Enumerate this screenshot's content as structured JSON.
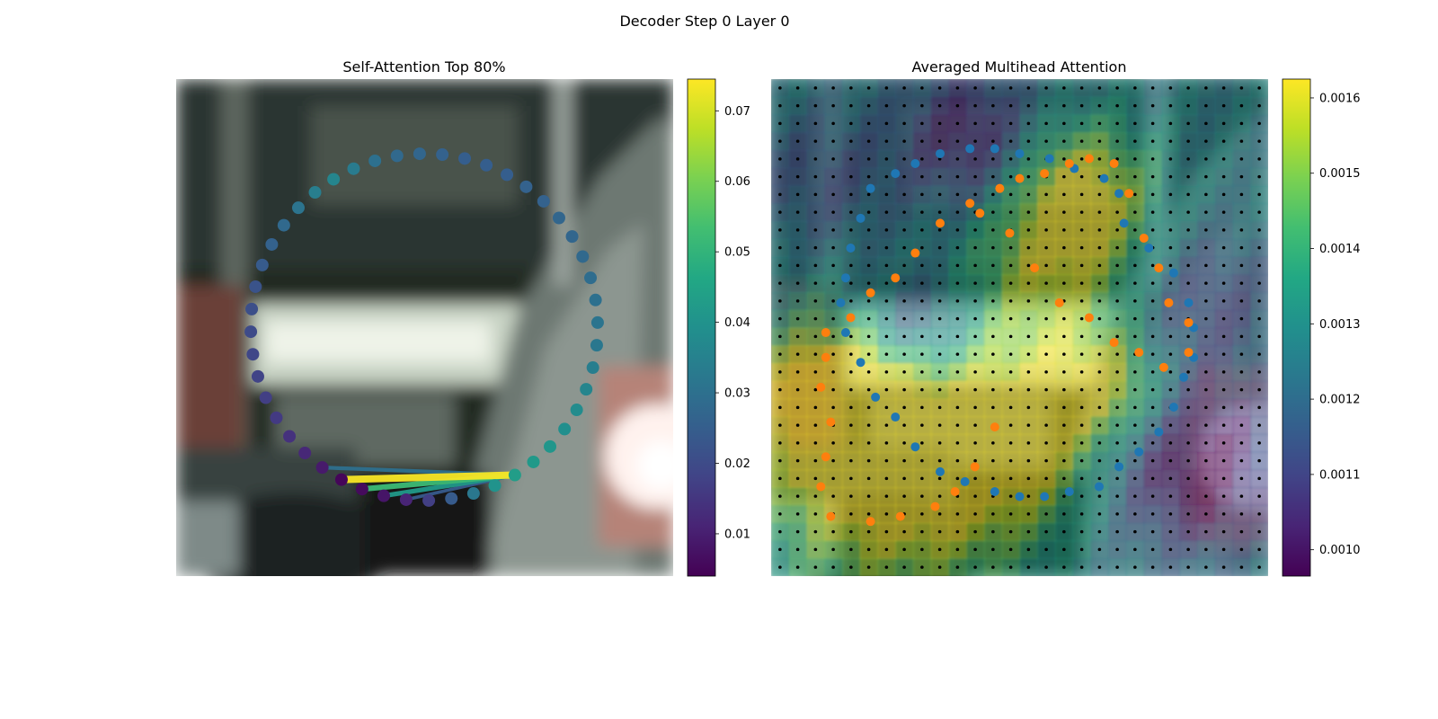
{
  "figure": {
    "suptitle": "Decoder Step 0 Layer 0"
  },
  "chart_data": [
    {
      "type": "scatter",
      "title": "Self-Attention Top 80%",
      "background": "blurred camera crop of a vehicle interior (dark cabin, bright window, bright lamp at right)",
      "colormap": "viridis",
      "colorbar": {
        "range": [
          0.004,
          0.0745
        ],
        "ticks": [
          0.01,
          0.02,
          0.03,
          0.04,
          0.05,
          0.06,
          0.07
        ],
        "tick_labels": [
          "0.01",
          "0.02",
          "0.03",
          "0.04",
          "0.05",
          "0.06",
          "0.07"
        ]
      },
      "points": {
        "description": "48 contour control points placed on a closed ring, colored by attention weight",
        "count": 48,
        "query_index": 0,
        "values": [
          0.043,
          0.042,
          0.041,
          0.039,
          0.038,
          0.036,
          0.034,
          0.032,
          0.031,
          0.03,
          0.029,
          0.028,
          0.027,
          0.027,
          0.026,
          0.026,
          0.025,
          0.025,
          0.025,
          0.026,
          0.027,
          0.028,
          0.03,
          0.033,
          0.036,
          0.034,
          0.031,
          0.028,
          0.026,
          0.024,
          0.022,
          0.021,
          0.02,
          0.019,
          0.018,
          0.017,
          0.016,
          0.014,
          0.012,
          0.009,
          0.005,
          0.006,
          0.008,
          0.011,
          0.017,
          0.024,
          0.032,
          0.04
        ]
      },
      "attention_lines": [
        {
          "target_index": 40,
          "weight": 0.074
        },
        {
          "target_index": 41,
          "weight": 0.052
        },
        {
          "target_index": 42,
          "weight": 0.042
        },
        {
          "target_index": 39,
          "weight": 0.03
        },
        {
          "target_index": 43,
          "weight": 0.024
        }
      ]
    },
    {
      "type": "heatmap",
      "title": "Averaged Multihead Attention",
      "background": "same camera crop overlaid with 28x28 attention grid",
      "colormap": "viridis",
      "colorbar": {
        "range": [
          0.000965,
          0.001625
        ],
        "ticks": [
          0.001,
          0.0011,
          0.0012,
          0.0013,
          0.0014,
          0.0015,
          0.0016
        ],
        "tick_labels": [
          "0.0010",
          "0.0011",
          "0.0012",
          "0.0013",
          "0.0014",
          "0.0015",
          "0.0016"
        ]
      },
      "grid": {
        "rows": 28,
        "cols": 28,
        "markers": "black dots at cell centers"
      },
      "series": [
        {
          "color": "#1f77b4",
          "kind": "reference contour points",
          "x": [
            0.5,
            0.56,
            0.61,
            0.67,
            0.7,
            0.71,
            0.76,
            0.81,
            0.84,
            0.85,
            0.85,
            0.83,
            0.81,
            0.78,
            0.74,
            0.7,
            0.66,
            0.6,
            0.55,
            0.5,
            0.45,
            0.39,
            0.34,
            0.29,
            0.25,
            0.21,
            0.18,
            0.15,
            0.14,
            0.15,
            0.16,
            0.18,
            0.2,
            0.25,
            0.29,
            0.34,
            0.4,
            0.45
          ],
          "y": [
            0.85,
            0.84,
            0.82,
            0.8,
            0.77,
            0.71,
            0.66,
            0.61,
            0.55,
            0.5,
            0.44,
            0.4,
            0.34,
            0.29,
            0.25,
            0.22,
            0.18,
            0.17,
            0.16,
            0.16,
            0.17,
            0.19,
            0.21,
            0.26,
            0.32,
            0.36,
            0.43,
            0.49,
            0.55,
            0.6,
            0.66,
            0.72,
            0.78,
            0.81,
            0.83,
            0.85,
            0.86,
            0.86
          ]
        },
        {
          "color": "#ff7f0e",
          "kind": "predicted contour points",
          "x": [
            0.42,
            0.48,
            0.53,
            0.58,
            0.64,
            0.69,
            0.74,
            0.79,
            0.84,
            0.84,
            0.8,
            0.78,
            0.75,
            0.72,
            0.69,
            0.64,
            0.6,
            0.55,
            0.5,
            0.46,
            0.4,
            0.34,
            0.29,
            0.25,
            0.2,
            0.16,
            0.11,
            0.11,
            0.1,
            0.12,
            0.11,
            0.1,
            0.12,
            0.2,
            0.26,
            0.33,
            0.37,
            0.41,
            0.45
          ],
          "y": [
            0.73,
            0.69,
            0.62,
            0.55,
            0.52,
            0.47,
            0.45,
            0.42,
            0.45,
            0.51,
            0.55,
            0.62,
            0.68,
            0.77,
            0.83,
            0.84,
            0.83,
            0.81,
            0.8,
            0.78,
            0.75,
            0.71,
            0.65,
            0.6,
            0.57,
            0.52,
            0.49,
            0.44,
            0.38,
            0.31,
            0.24,
            0.18,
            0.12,
            0.11,
            0.12,
            0.14,
            0.17,
            0.22,
            0.3
          ]
        }
      ]
    }
  ]
}
